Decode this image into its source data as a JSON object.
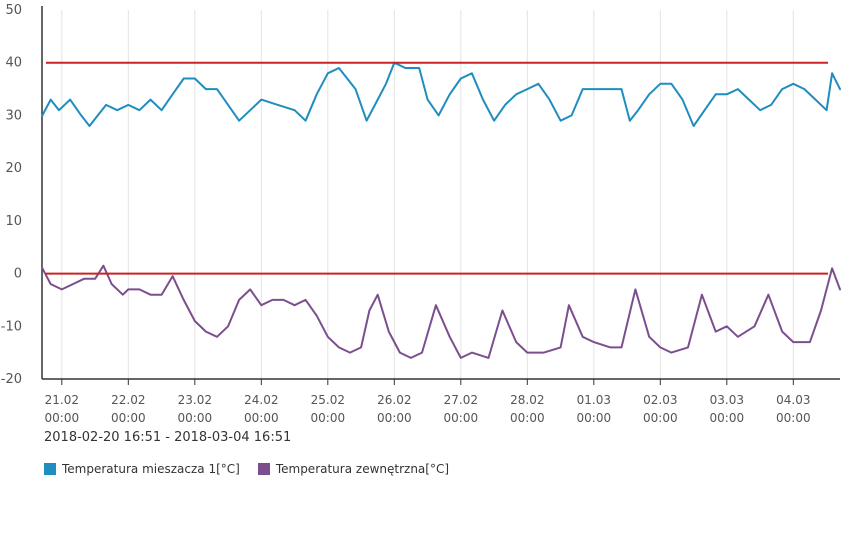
{
  "chart_data": {
    "type": "line",
    "date_range": "2018-02-20 16:51 - 2018-03-04 16:51",
    "ylim": [
      -20,
      50
    ],
    "y_ticks": [
      "50",
      "40",
      "30",
      "20",
      "10",
      "0",
      "-10",
      "-20"
    ],
    "x_range": [
      "2018-02-20 16:51",
      "2018-03-04 16:51"
    ],
    "x_ticks": [
      {
        "date": "21.02",
        "time": "00:00"
      },
      {
        "date": "22.02",
        "time": "00:00"
      },
      {
        "date": "23.02",
        "time": "00:00"
      },
      {
        "date": "24.02",
        "time": "00:00"
      },
      {
        "date": "25.02",
        "time": "00:00"
      },
      {
        "date": "26.02",
        "time": "00:00"
      },
      {
        "date": "27.02",
        "time": "00:00"
      },
      {
        "date": "28.02",
        "time": "00:00"
      },
      {
        "date": "01.03",
        "time": "00:00"
      },
      {
        "date": "02.03",
        "time": "00:00"
      },
      {
        "date": "03.03",
        "time": "00:00"
      },
      {
        "date": "04.03",
        "time": "00:00"
      }
    ],
    "grid": true,
    "legend_position": "bottom-left",
    "threshold_lines": [
      {
        "value": 40,
        "color": "#cc2222"
      },
      {
        "value": 0,
        "color": "#cc2222"
      }
    ],
    "series": [
      {
        "name": "Temperatura mieszacza 1[°C]",
        "color": "#1f8dbf",
        "points": [
          [
            "2018-02-20 17:00",
            30
          ],
          [
            "2018-02-20 20:00",
            33
          ],
          [
            "2018-02-20 23:00",
            31
          ],
          [
            "2018-02-21 03:00",
            33
          ],
          [
            "2018-02-21 07:00",
            30
          ],
          [
            "2018-02-21 10:00",
            28
          ],
          [
            "2018-02-21 13:00",
            30
          ],
          [
            "2018-02-21 16:00",
            32
          ],
          [
            "2018-02-21 20:00",
            31
          ],
          [
            "2018-02-22 00:00",
            32
          ],
          [
            "2018-02-22 04:00",
            31
          ],
          [
            "2018-02-22 08:00",
            33
          ],
          [
            "2018-02-22 12:00",
            31
          ],
          [
            "2018-02-22 16:00",
            34
          ],
          [
            "2018-02-22 20:00",
            37
          ],
          [
            "2018-02-23 00:00",
            37
          ],
          [
            "2018-02-23 04:00",
            35
          ],
          [
            "2018-02-23 08:00",
            35
          ],
          [
            "2018-02-23 12:00",
            32
          ],
          [
            "2018-02-23 16:00",
            29
          ],
          [
            "2018-02-23 20:00",
            31
          ],
          [
            "2018-02-24 00:00",
            33
          ],
          [
            "2018-02-24 06:00",
            32
          ],
          [
            "2018-02-24 12:00",
            31
          ],
          [
            "2018-02-24 16:00",
            29
          ],
          [
            "2018-02-24 20:00",
            34
          ],
          [
            "2018-02-25 00:00",
            38
          ],
          [
            "2018-02-25 04:00",
            39
          ],
          [
            "2018-02-25 07:00",
            37
          ],
          [
            "2018-02-25 10:00",
            35
          ],
          [
            "2018-02-25 14:00",
            29
          ],
          [
            "2018-02-25 18:00",
            33
          ],
          [
            "2018-02-25 21:00",
            36
          ],
          [
            "2018-02-26 00:00",
            40
          ],
          [
            "2018-02-26 04:00",
            39
          ],
          [
            "2018-02-26 09:00",
            39
          ],
          [
            "2018-02-26 12:00",
            33
          ],
          [
            "2018-02-26 16:00",
            30
          ],
          [
            "2018-02-26 20:00",
            34
          ],
          [
            "2018-02-27 00:00",
            37
          ],
          [
            "2018-02-27 04:00",
            38
          ],
          [
            "2018-02-27 08:00",
            33
          ],
          [
            "2018-02-27 12:00",
            29
          ],
          [
            "2018-02-27 16:00",
            32
          ],
          [
            "2018-02-27 20:00",
            34
          ],
          [
            "2018-02-28 00:00",
            35
          ],
          [
            "2018-02-28 04:00",
            36
          ],
          [
            "2018-02-28 08:00",
            33
          ],
          [
            "2018-02-28 12:00",
            29
          ],
          [
            "2018-02-28 16:00",
            30
          ],
          [
            "2018-02-28 20:00",
            35
          ],
          [
            "2018-03-01 00:00",
            35
          ],
          [
            "2018-03-01 06:00",
            35
          ],
          [
            "2018-03-01 10:00",
            35
          ],
          [
            "2018-03-01 13:00",
            29
          ],
          [
            "2018-03-01 16:00",
            31
          ],
          [
            "2018-03-01 20:00",
            34
          ],
          [
            "2018-03-02 00:00",
            36
          ],
          [
            "2018-03-02 04:00",
            36
          ],
          [
            "2018-03-02 08:00",
            33
          ],
          [
            "2018-03-02 12:00",
            28
          ],
          [
            "2018-03-02 16:00",
            31
          ],
          [
            "2018-03-02 20:00",
            34
          ],
          [
            "2018-03-03 00:00",
            34
          ],
          [
            "2018-03-03 04:00",
            35
          ],
          [
            "2018-03-03 08:00",
            33
          ],
          [
            "2018-03-03 12:00",
            31
          ],
          [
            "2018-03-03 16:00",
            32
          ],
          [
            "2018-03-03 20:00",
            35
          ],
          [
            "2018-03-04 00:00",
            36
          ],
          [
            "2018-03-04 04:00",
            35
          ],
          [
            "2018-03-04 08:00",
            33
          ],
          [
            "2018-03-04 12:00",
            31
          ],
          [
            "2018-03-04 14:00",
            38
          ],
          [
            "2018-03-04 16:51",
            35
          ]
        ]
      },
      {
        "name": "Temperatura zewnętrzna[°C]",
        "color": "#7b4f8e",
        "points": [
          [
            "2018-02-20 17:00",
            1
          ],
          [
            "2018-02-20 20:00",
            -2
          ],
          [
            "2018-02-21 00:00",
            -3
          ],
          [
            "2018-02-21 04:00",
            -2
          ],
          [
            "2018-02-21 08:00",
            -1
          ],
          [
            "2018-02-21 12:00",
            -1
          ],
          [
            "2018-02-21 15:00",
            1.5
          ],
          [
            "2018-02-21 18:00",
            -2
          ],
          [
            "2018-02-21 22:00",
            -4
          ],
          [
            "2018-02-22 00:00",
            -3
          ],
          [
            "2018-02-22 04:00",
            -3
          ],
          [
            "2018-02-22 08:00",
            -4
          ],
          [
            "2018-02-22 12:00",
            -4
          ],
          [
            "2018-02-22 16:00",
            -0.5
          ],
          [
            "2018-02-22 20:00",
            -5
          ],
          [
            "2018-02-23 00:00",
            -9
          ],
          [
            "2018-02-23 04:00",
            -11
          ],
          [
            "2018-02-23 08:00",
            -12
          ],
          [
            "2018-02-23 12:00",
            -10
          ],
          [
            "2018-02-23 16:00",
            -5
          ],
          [
            "2018-02-23 20:00",
            -3
          ],
          [
            "2018-02-24 00:00",
            -6
          ],
          [
            "2018-02-24 04:00",
            -5
          ],
          [
            "2018-02-24 08:00",
            -5
          ],
          [
            "2018-02-24 12:00",
            -6
          ],
          [
            "2018-02-24 16:00",
            -5
          ],
          [
            "2018-02-24 20:00",
            -8
          ],
          [
            "2018-02-25 00:00",
            -12
          ],
          [
            "2018-02-25 04:00",
            -14
          ],
          [
            "2018-02-25 08:00",
            -15
          ],
          [
            "2018-02-25 12:00",
            -14
          ],
          [
            "2018-02-25 15:00",
            -7
          ],
          [
            "2018-02-25 18:00",
            -4
          ],
          [
            "2018-02-25 22:00",
            -11
          ],
          [
            "2018-02-26 02:00",
            -15
          ],
          [
            "2018-02-26 06:00",
            -16
          ],
          [
            "2018-02-26 10:00",
            -15
          ],
          [
            "2018-02-26 15:00",
            -6
          ],
          [
            "2018-02-26 20:00",
            -12
          ],
          [
            "2018-02-27 00:00",
            -16
          ],
          [
            "2018-02-27 04:00",
            -15
          ],
          [
            "2018-02-27 10:00",
            -16
          ],
          [
            "2018-02-27 15:00",
            -7
          ],
          [
            "2018-02-27 20:00",
            -13
          ],
          [
            "2018-02-28 00:00",
            -15
          ],
          [
            "2018-02-28 06:00",
            -15
          ],
          [
            "2018-02-28 12:00",
            -14
          ],
          [
            "2018-02-28 15:00",
            -6
          ],
          [
            "2018-02-28 20:00",
            -12
          ],
          [
            "2018-03-01 00:00",
            -13
          ],
          [
            "2018-03-01 06:00",
            -14
          ],
          [
            "2018-03-01 10:00",
            -14
          ],
          [
            "2018-03-01 15:00",
            -3
          ],
          [
            "2018-03-01 20:00",
            -12
          ],
          [
            "2018-03-02 00:00",
            -14
          ],
          [
            "2018-03-02 04:00",
            -15
          ],
          [
            "2018-03-02 10:00",
            -14
          ],
          [
            "2018-03-02 15:00",
            -4
          ],
          [
            "2018-03-02 20:00",
            -11
          ],
          [
            "2018-03-03 00:00",
            -10
          ],
          [
            "2018-03-03 04:00",
            -12
          ],
          [
            "2018-03-03 10:00",
            -10
          ],
          [
            "2018-03-03 15:00",
            -4
          ],
          [
            "2018-03-03 20:00",
            -11
          ],
          [
            "2018-03-04 00:00",
            -13
          ],
          [
            "2018-03-04 06:00",
            -13
          ],
          [
            "2018-03-04 10:00",
            -7
          ],
          [
            "2018-03-04 14:00",
            1
          ],
          [
            "2018-03-04 16:51",
            -3
          ]
        ]
      }
    ]
  }
}
